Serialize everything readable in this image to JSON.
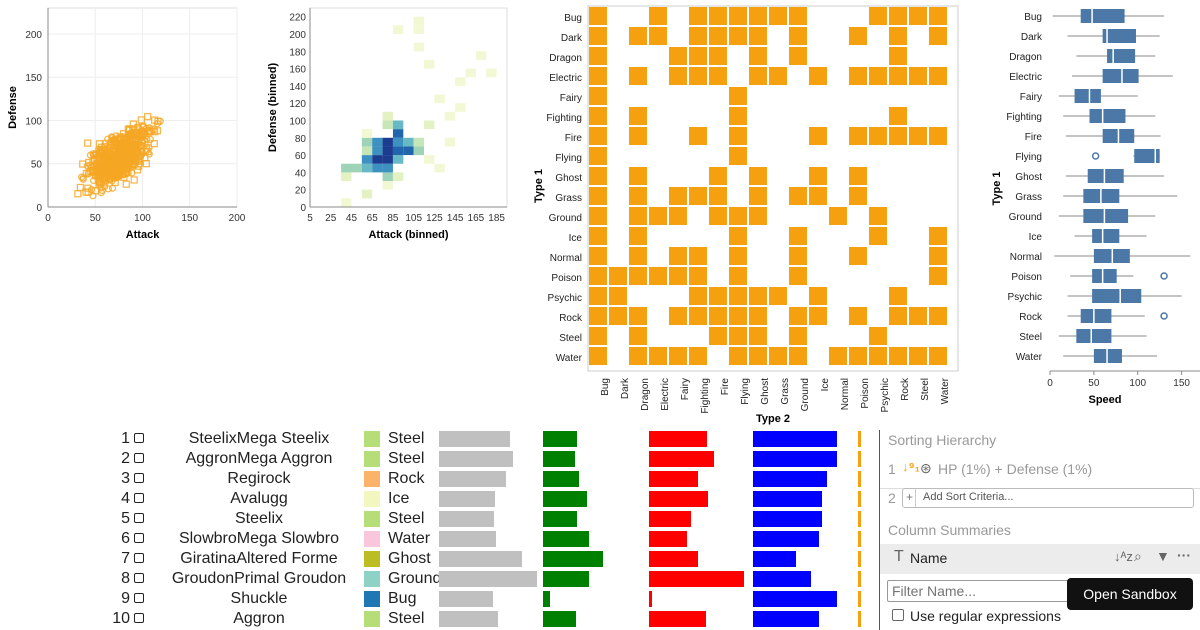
{
  "scatter": {
    "xlabel": "Attack",
    "ylabel": "Defense",
    "xticks": [
      "0",
      "50",
      "100",
      "150",
      "200"
    ],
    "yticks": [
      "0",
      "50",
      "100",
      "150",
      "200"
    ],
    "color": "#f5a623"
  },
  "binned": {
    "xlabel": "Attack (binned)",
    "ylabel": "Defense (binned)",
    "xticks": [
      "5",
      "25",
      "45",
      "65",
      "85",
      "105",
      "125",
      "145",
      "165",
      "185"
    ],
    "yticks": [
      "0",
      "20",
      "40",
      "60",
      "80",
      "100",
      "120",
      "140",
      "160",
      "180",
      "200",
      "220"
    ]
  },
  "matrix": {
    "xlabel": "Type 2",
    "ylabel": "Type 1",
    "color": "#f5a10f",
    "types": [
      "Bug",
      "Dark",
      "Dragon",
      "Electric",
      "Fairy",
      "Fighting",
      "Fire",
      "Flying",
      "Ghost",
      "Grass",
      "Ground",
      "Ice",
      "Normal",
      "Poison",
      "Psychic",
      "Rock",
      "Steel",
      "Water"
    ]
  },
  "boxplot": {
    "xlabel": "Speed",
    "ylabel": "Type 1",
    "xticks": [
      "0",
      "50",
      "100",
      "150"
    ],
    "color": "#4c78a8"
  },
  "table": {
    "rows": [
      {
        "rank": "1",
        "name": "SteelixMega Steelix",
        "type": "Steel",
        "color": "#b5dd78"
      },
      {
        "rank": "2",
        "name": "AggronMega Aggron",
        "type": "Steel",
        "color": "#b5dd78"
      },
      {
        "rank": "3",
        "name": "Regirock",
        "type": "Rock",
        "color": "#fbb36a"
      },
      {
        "rank": "4",
        "name": "Avalugg",
        "type": "Ice",
        "color": "#f2f7c0"
      },
      {
        "rank": "5",
        "name": "Steelix",
        "type": "Steel",
        "color": "#b5dd78"
      },
      {
        "rank": "6",
        "name": "SlowbroMega Slowbro",
        "type": "Water",
        "color": "#f9c6dc"
      },
      {
        "rank": "7",
        "name": "GiratinaAltered Forme",
        "type": "Ghost",
        "color": "#bcbd22"
      },
      {
        "rank": "8",
        "name": "GroudonPrimal Groudon",
        "type": "Ground",
        "color": "#8ed2c6"
      },
      {
        "rank": "9",
        "name": "Shuckle",
        "type": "Bug",
        "color": "#1f77b4"
      },
      {
        "rank": "10",
        "name": "Aggron",
        "type": "Steel",
        "color": "#b5dd78"
      }
    ],
    "bars": [
      [
        0.72,
        0.56,
        0.61,
        0.84,
        0.2
      ],
      [
        0.75,
        0.54,
        0.68,
        0.84,
        0.2
      ],
      [
        0.68,
        0.6,
        0.51,
        0.74,
        0.2
      ],
      [
        0.57,
        0.74,
        0.62,
        0.69,
        0.2
      ],
      [
        0.56,
        0.57,
        0.44,
        0.69,
        0.2
      ],
      [
        0.58,
        0.76,
        0.4,
        0.66,
        0.2
      ],
      [
        0.85,
        1.0,
        0.52,
        0.43,
        0.2
      ],
      [
        1.0,
        0.77,
        1.0,
        0.58,
        0.2
      ],
      [
        0.55,
        0.12,
        0.03,
        0.84,
        0.2
      ],
      [
        0.6,
        0.55,
        0.6,
        0.66,
        0.2
      ]
    ],
    "bar_colors": [
      "#c0c0c0",
      "#008000",
      "#ff0000",
      "#0000ff",
      "#f5a10f"
    ]
  },
  "side": {
    "sorting_title": "Sorting Hierarchy",
    "sort1_index": "1",
    "sort1_text": "HP (1%) + Defense (1%)",
    "sort2_index": "2",
    "add_sort": "Add Sort Criteria...",
    "summaries_title": "Column Summaries",
    "name_col": "Name",
    "filter_placeholder": "Filter Name...",
    "regex_label": "Use regular expressions",
    "sandbox_button": "Open Sandbox"
  }
}
